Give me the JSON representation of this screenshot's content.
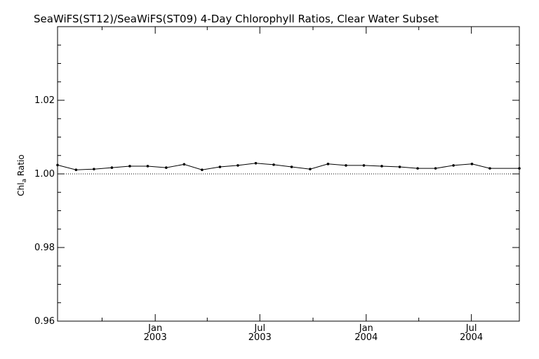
{
  "chart_data": {
    "type": "line",
    "title": "SeaWiFS(ST12)/SeaWiFS(ST09) 4-Day Chlorophyll Ratios, Clear Water Subset",
    "ylabel": "Chl_a Ratio",
    "ylabel_main": "Chl",
    "ylabel_sub": "a",
    "ylabel_tail": " Ratio",
    "xlabel": "",
    "ylim": [
      0.96,
      1.04
    ],
    "xlim": [
      "2002-07-16",
      "2004-09-22"
    ],
    "yticks": [
      {
        "value": 0.96,
        "label": "0.96"
      },
      {
        "value": 0.98,
        "label": "0.98"
      },
      {
        "value": 1.0,
        "label": "1.00"
      },
      {
        "value": 1.02,
        "label": "1.02"
      }
    ],
    "xticks": [
      {
        "date": "2003-01-01",
        "month": "Jan",
        "year": "2003"
      },
      {
        "date": "2003-07-01",
        "month": "Jul",
        "year": "2003"
      },
      {
        "date": "2004-01-01",
        "month": "Jan",
        "year": "2004"
      },
      {
        "date": "2004-07-01",
        "month": "Jul",
        "year": "2004"
      }
    ],
    "xticks_minor": [
      "2002-10-01",
      "2003-04-01",
      "2003-10-01",
      "2004-04-01"
    ],
    "reference_line": {
      "value": 1.0,
      "style": "dotted"
    },
    "series": [
      {
        "x": [
          "2002-07-16",
          "2002-08-17",
          "2002-09-17",
          "2002-10-18",
          "2002-11-18",
          "2002-12-19",
          "2003-01-20",
          "2003-02-20",
          "2003-03-23",
          "2003-04-23",
          "2003-05-24",
          "2003-06-24",
          "2003-07-25",
          "2003-08-25",
          "2003-09-26",
          "2003-10-27",
          "2003-11-27",
          "2003-12-28",
          "2004-01-28",
          "2004-02-28",
          "2004-03-30",
          "2004-04-30",
          "2004-05-31",
          "2004-07-02",
          "2004-08-02",
          "2004-09-22"
        ],
        "values": [
          1.0024,
          1.0011,
          1.0013,
          1.0017,
          1.0021,
          1.0021,
          1.0017,
          1.0026,
          1.0011,
          1.0019,
          1.0023,
          1.0029,
          1.0025,
          1.0019,
          1.0013,
          1.0027,
          1.0023,
          1.0023,
          1.0021,
          1.0019,
          1.0015,
          1.0015,
          1.0023,
          1.0027,
          1.0015,
          1.0015
        ]
      }
    ]
  }
}
